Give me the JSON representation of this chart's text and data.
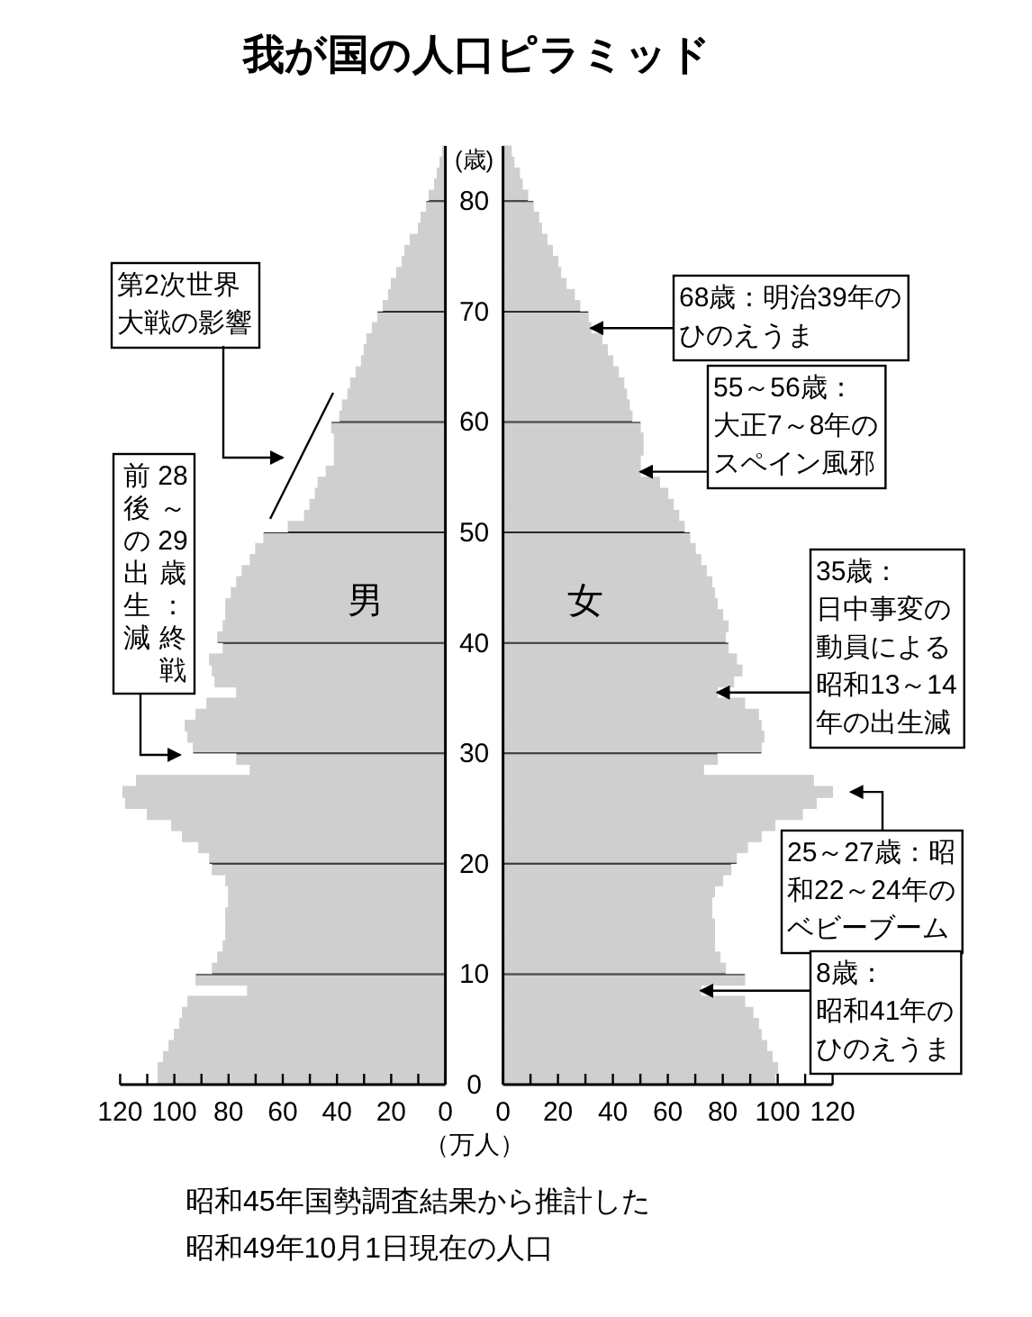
{
  "chart_data": [
    {
      "type": "bar",
      "orientation": "horizontal",
      "title": "我が国の人口ピラミッド",
      "xlabel": "（万人）",
      "ylabel": "(歳)",
      "x": [
        0,
        1,
        2,
        3,
        4,
        5,
        6,
        7,
        8,
        9,
        10,
        11,
        12,
        13,
        14,
        15,
        16,
        17,
        18,
        19,
        20,
        21,
        22,
        23,
        24,
        25,
        26,
        27,
        28,
        29,
        30,
        31,
        32,
        33,
        34,
        35,
        36,
        37,
        38,
        39,
        40,
        41,
        42,
        43,
        44,
        45,
        46,
        47,
        48,
        49,
        50,
        51,
        52,
        53,
        54,
        55,
        56,
        57,
        58,
        59,
        60,
        61,
        62,
        63,
        64,
        65,
        66,
        67,
        68,
        69,
        70,
        71,
        72,
        73,
        74,
        75,
        76,
        77,
        78,
        79,
        80,
        81,
        82,
        83,
        84
      ],
      "series": [
        {
          "name": "男",
          "color": "#cfcfcf",
          "values": [
            106,
            106,
            104,
            102,
            100,
            98,
            97,
            95,
            73,
            92,
            86,
            84,
            82,
            81,
            81,
            81,
            80,
            80,
            81,
            86,
            87,
            91,
            97,
            101,
            110,
            118,
            119,
            114,
            72,
            77,
            93,
            95,
            96,
            92,
            88,
            77,
            85,
            86,
            87,
            82,
            84,
            82,
            81,
            81,
            79,
            77,
            75,
            72,
            70,
            67,
            58,
            52,
            50,
            48,
            47,
            44,
            41,
            41,
            41,
            42,
            39,
            38,
            36,
            35,
            33,
            31,
            30,
            29,
            27,
            25,
            23,
            21,
            20,
            18,
            16,
            15,
            13,
            10,
            9,
            7,
            6,
            4,
            3,
            2,
            1
          ]
        }
      ],
      "xlim": [
        120,
        0
      ],
      "xticks": [
        120,
        {
          "value": 110,
          "label": null
        },
        100,
        {
          "value": 90,
          "label": null
        },
        80,
        {
          "value": 70,
          "label": null
        },
        60,
        {
          "value": 50,
          "label": null
        },
        40,
        {
          "value": 30,
          "label": null
        },
        20,
        {
          "value": 10,
          "label": null
        },
        0
      ],
      "ylim": [
        0,
        85
      ],
      "yticks": [
        0,
        10,
        20,
        30,
        40,
        50,
        60,
        70,
        80
      ],
      "grid": "y",
      "annotations": [
        "第2次世界大戦の影響",
        "28～29歳：終戦",
        "前後の出生減",
        "昭和45年国勢調査結果から推計した昭和49年10月1日現在の人口"
      ]
    },
    {
      "type": "bar",
      "orientation": "horizontal",
      "x": [
        0,
        1,
        2,
        3,
        4,
        5,
        6,
        7,
        8,
        9,
        10,
        11,
        12,
        13,
        14,
        15,
        16,
        17,
        18,
        19,
        20,
        21,
        22,
        23,
        24,
        25,
        26,
        27,
        28,
        29,
        30,
        31,
        32,
        33,
        34,
        35,
        36,
        37,
        38,
        39,
        40,
        41,
        42,
        43,
        44,
        45,
        46,
        47,
        48,
        49,
        50,
        51,
        52,
        53,
        54,
        55,
        56,
        57,
        58,
        59,
        60,
        61,
        62,
        63,
        64,
        65,
        66,
        67,
        68,
        69,
        70,
        71,
        72,
        73,
        74,
        75,
        76,
        77,
        78,
        79,
        80,
        81,
        82,
        83,
        84
      ],
      "series": [
        {
          "name": "女",
          "color": "#cfcfcf",
          "values": [
            99,
            100,
            98,
            96,
            94,
            93,
            91,
            88,
            72,
            88,
            81,
            79,
            77,
            77,
            77,
            76,
            76,
            77,
            80,
            83,
            85,
            89,
            94,
            99,
            109,
            114,
            120,
            113,
            73,
            78,
            94,
            95,
            94,
            93,
            88,
            78,
            84,
            87,
            85,
            82,
            81,
            82,
            80,
            78,
            77,
            76,
            74,
            72,
            70,
            68,
            66,
            64,
            62,
            60,
            57,
            50,
            50,
            51,
            51,
            50,
            47,
            46,
            45,
            44,
            42,
            40,
            38,
            36,
            32,
            31,
            28,
            26,
            23,
            21,
            20,
            18,
            16,
            14,
            13,
            11,
            9,
            7,
            6,
            4,
            3
          ]
        }
      ],
      "xlim": [
        0,
        120
      ],
      "xticks": [
        0,
        {
          "value": 10,
          "label": null
        },
        20,
        {
          "value": 30,
          "label": null
        },
        40,
        {
          "value": 50,
          "label": null
        },
        60,
        {
          "value": 70,
          "label": null
        },
        80,
        {
          "value": 90,
          "label": null
        },
        100,
        {
          "value": 110,
          "label": null
        },
        120
      ],
      "ylim": [
        0,
        85
      ],
      "yticks": [
        0,
        10,
        20,
        30,
        40,
        50,
        60,
        70,
        80
      ],
      "grid": "y",
      "tick_labels": "x",
      "annotations": [
        {
          "text": "68歳：明治39年のひのえうま",
          "x": 32,
          "y": 68
        },
        {
          "text": "55～56歳：大正7～8年のスペイン風邪",
          "x": 50,
          "y": 55
        },
        {
          "text": "35歳：日中事変の動員による昭和13～14年の出生減",
          "x": 78,
          "y": 35
        },
        {
          "text": "25～27歳：昭和22～24年のベビーブーム",
          "x": 120,
          "y": 26
        },
        {
          "text": "8歳：昭和41年のひのえうま",
          "x": 72,
          "y": 8
        }
      ]
    }
  ]
}
